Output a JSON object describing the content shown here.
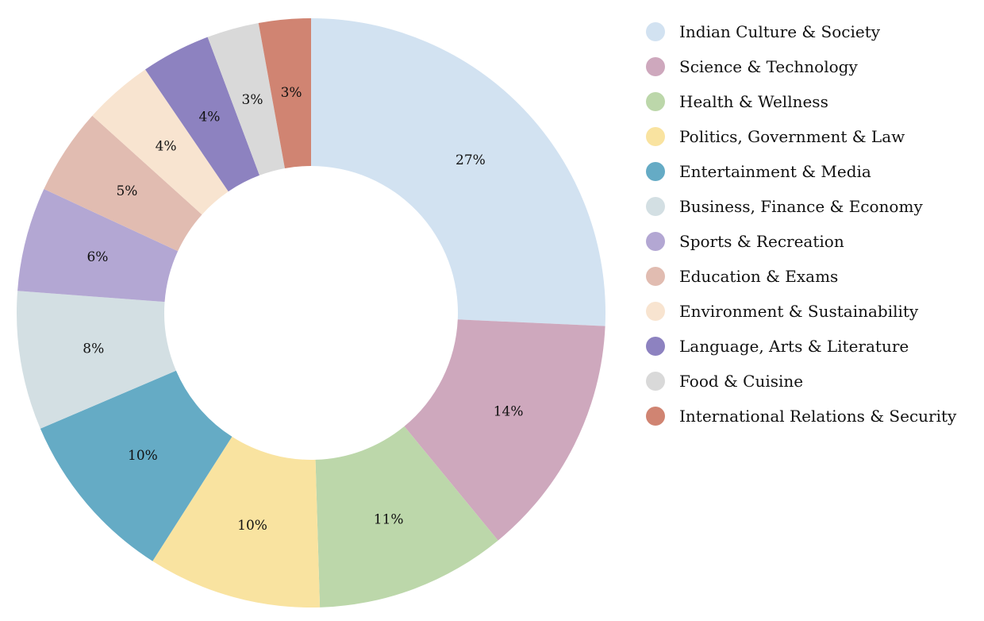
{
  "chart_data": {
    "type": "pie",
    "variant": "donut",
    "title": "",
    "legend_position": "right",
    "slices": [
      {
        "label": "Indian Culture & Society",
        "value": 27,
        "display": "27%",
        "color": "#d2e2f1"
      },
      {
        "label": "Science & Technology",
        "value": 14,
        "display": "14%",
        "color": "#cea8bd"
      },
      {
        "label": "Health & Wellness",
        "value": 11,
        "display": "11%",
        "color": "#bcd7aa"
      },
      {
        "label": "Politics, Government & Law",
        "value": 10,
        "display": "10%",
        "color": "#f9e3a0"
      },
      {
        "label": "Entertainment & Media",
        "value": 10,
        "display": "10%",
        "color": "#65abc5"
      },
      {
        "label": "Business, Finance & Economy",
        "value": 8,
        "display": "8%",
        "color": "#d3dfe3"
      },
      {
        "label": "Sports & Recreation",
        "value": 6,
        "display": "6%",
        "color": "#b3a7d3"
      },
      {
        "label": "Education & Exams",
        "value": 5,
        "display": "5%",
        "color": "#e1bcb1"
      },
      {
        "label": "Environment & Sustainability",
        "value": 4,
        "display": "4%",
        "color": "#f8e4d0"
      },
      {
        "label": "Language, Arts & Literature",
        "value": 4,
        "display": "4%",
        "color": "#8d82c0"
      },
      {
        "label": "Food & Cuisine",
        "value": 3,
        "display": "3%",
        "color": "#d9d9d9"
      },
      {
        "label": "International Relations & Security",
        "value": 3,
        "display": "3%",
        "color": "#d08472"
      }
    ]
  }
}
